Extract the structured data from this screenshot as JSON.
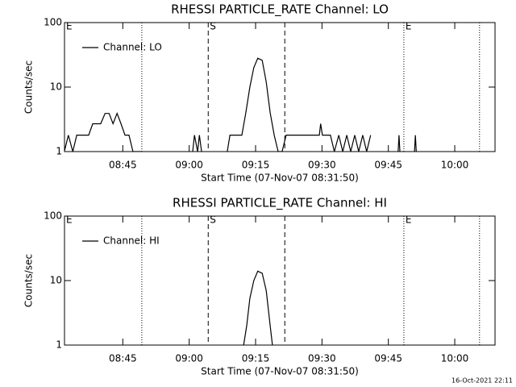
{
  "chart_data": [
    {
      "type": "line",
      "title": "RHESSI PARTICLE_RATE Channel: LO",
      "xlabel": "Start Time (07-Nov-07 08:31:50)",
      "ylabel": "Counts/sec",
      "log_y": true,
      "legend": "upper left",
      "xlim": [
        511.83,
        609.1
      ],
      "ylim": [
        1,
        100
      ],
      "yticks": [
        1,
        10,
        100
      ],
      "xticks": [
        {
          "value": 525,
          "label": "08:45"
        },
        {
          "value": 540,
          "label": "09:00"
        },
        {
          "value": 555,
          "label": "09:15"
        },
        {
          "value": 570,
          "label": "09:30"
        },
        {
          "value": 585,
          "label": "09:45"
        },
        {
          "value": 600,
          "label": "10:00"
        }
      ],
      "annotations": [
        {
          "x": 511.83,
          "style": "dotted",
          "label": "E"
        },
        {
          "x": 529.3,
          "style": "dotted"
        },
        {
          "x": 544.3,
          "style": "dashed",
          "label": "S"
        },
        {
          "x": 561.6,
          "style": "dashed"
        },
        {
          "x": 588.5,
          "style": "dotted",
          "label": "E"
        },
        {
          "x": 605.6,
          "style": "dotted"
        }
      ],
      "x": [
        511.8,
        512.7,
        513.7,
        514.6,
        515.5,
        516.4,
        517.3,
        518.2,
        519.1,
        520.0,
        521.0,
        521.9,
        522.8,
        523.7,
        524.6,
        525.5,
        526.4,
        527.3,
        528.2,
        529.1,
        535.0,
        540.8,
        541.2,
        541.9,
        542.3,
        542.8,
        546.0,
        548.6,
        549.2,
        550.1,
        551.0,
        551.9,
        552.8,
        553.7,
        554.6,
        555.5,
        556.5,
        557.4,
        558.3,
        559.2,
        560.1,
        561.0,
        561.9,
        562.8,
        566.5,
        569.4,
        569.7,
        570.1,
        571.9,
        572.8,
        573.8,
        574.7,
        575.6,
        576.5,
        577.4,
        578.3,
        579.2,
        580.1,
        581.0,
        584.0,
        587.2,
        587.4,
        587.6,
        589.5,
        590.9,
        591.1,
        591.3
      ],
      "series": [
        {
          "name": "Channel: LO",
          "color": "#000000",
          "values": [
            1,
            1.8,
            1,
            1.8,
            1.8,
            1.8,
            1.8,
            2.7,
            2.7,
            2.7,
            3.9,
            3.9,
            2.7,
            3.9,
            2.7,
            1.8,
            1.8,
            1,
            1,
            1,
            null,
            1,
            1.8,
            1,
            1.8,
            1,
            null,
            1,
            1.8,
            1.8,
            1.8,
            1.8,
            4,
            10,
            20,
            28,
            26,
            12,
            4,
            1.8,
            1,
            1,
            1.8,
            1.8,
            1.8,
            1.8,
            2.7,
            1.8,
            1.8,
            1,
            1.8,
            1,
            1.8,
            1,
            1.8,
            1,
            1.8,
            1,
            1.8,
            null,
            1,
            1.8,
            1,
            null,
            1,
            1.8,
            1
          ]
        }
      ]
    },
    {
      "type": "line",
      "title": "RHESSI PARTICLE_RATE Channel: HI",
      "xlabel": "Start Time (07-Nov-07 08:31:50)",
      "ylabel": "Counts/sec",
      "log_y": true,
      "legend": "upper left",
      "xlim": [
        511.83,
        609.1
      ],
      "ylim": [
        1,
        100
      ],
      "yticks": [
        1,
        10,
        100
      ],
      "xticks": [
        {
          "value": 525,
          "label": "08:45"
        },
        {
          "value": 540,
          "label": "09:00"
        },
        {
          "value": 555,
          "label": "09:15"
        },
        {
          "value": 570,
          "label": "09:30"
        },
        {
          "value": 585,
          "label": "09:45"
        },
        {
          "value": 600,
          "label": "10:00"
        }
      ],
      "annotations": [
        {
          "x": 511.83,
          "style": "dotted",
          "label": "E"
        },
        {
          "x": 529.3,
          "style": "dotted"
        },
        {
          "x": 544.3,
          "style": "dashed",
          "label": "S"
        },
        {
          "x": 561.6,
          "style": "dashed"
        },
        {
          "x": 588.5,
          "style": "dotted",
          "label": "E"
        },
        {
          "x": 605.6,
          "style": "dotted"
        }
      ],
      "x": [
        552.3,
        553.0,
        553.7,
        554.6,
        555.5,
        556.5,
        557.4,
        558.3,
        558.8
      ],
      "series": [
        {
          "name": "Channel: HI",
          "color": "#000000",
          "values": [
            1,
            2,
            5.3,
            10,
            14,
            13,
            7,
            2,
            1
          ]
        }
      ]
    }
  ],
  "footer": "16-Oct-2021 22:11"
}
